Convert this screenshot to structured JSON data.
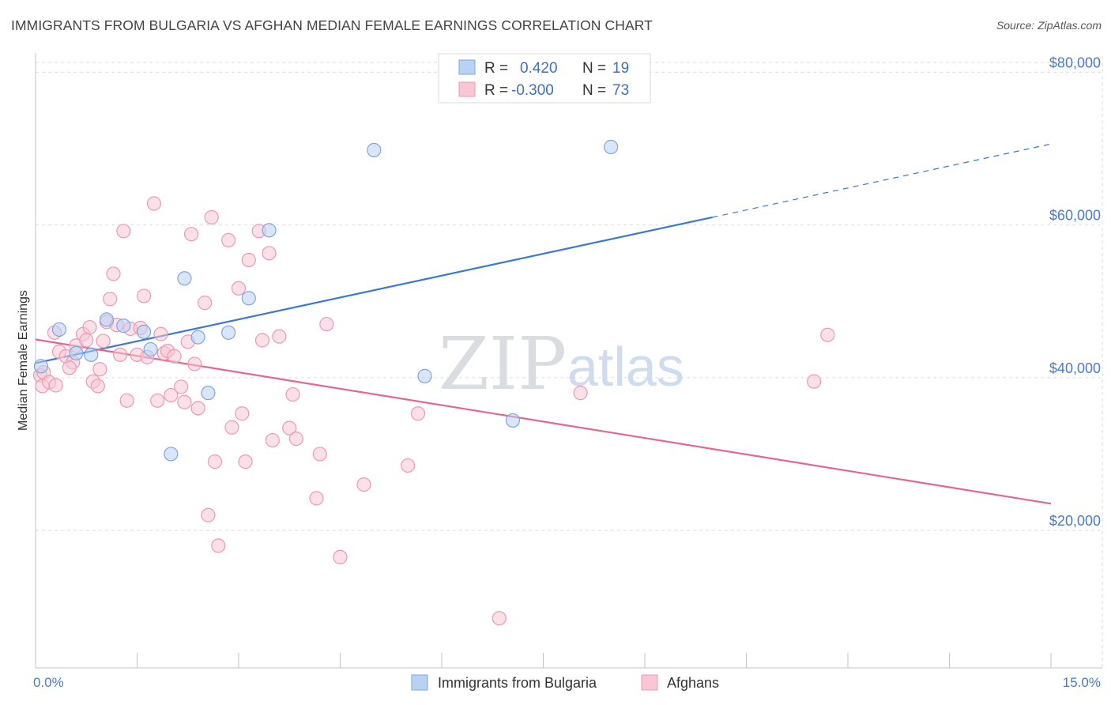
{
  "title": "IMMIGRANTS FROM BULGARIA VS AFGHAN MEDIAN FEMALE EARNINGS CORRELATION CHART",
  "source": "Source: ZipAtlas.com",
  "watermark": {
    "zip": "ZIP",
    "atlas": "atlas"
  },
  "colors": {
    "blue_fill": "#b9d1f5",
    "blue_stroke": "#7ea6e0",
    "blue_line": "#3a78d4",
    "pink_fill": "#f8c6d5",
    "pink_stroke": "#eb9ab3",
    "pink_line": "#e4678f",
    "grid": "#d9dde3",
    "tick_label": "#4a7bc4"
  },
  "legend_top": {
    "rows": [
      {
        "r_label": "R =",
        "r_value": "0.420",
        "n_label": "N =",
        "n_value": "19"
      },
      {
        "r_label": "R =",
        "r_value": "-0.300",
        "n_label": "N =",
        "n_value": "73"
      }
    ]
  },
  "legend_bottom": [
    "Immigrants from Bulgaria",
    "Afghans"
  ],
  "chart_data": {
    "type": "scatter",
    "title": "IMMIGRANTS FROM BULGARIA VS AFGHAN MEDIAN FEMALE EARNINGS CORRELATION CHART",
    "xlabel": "",
    "ylabel": "Median Female Earnings",
    "xlim": [
      0,
      15
    ],
    "ylim": [
      2000,
      82000
    ],
    "x_tick_labels": [
      "0.0%",
      "15.0%"
    ],
    "y_ticks": [
      20000,
      40000,
      60000,
      80000
    ],
    "y_tick_labels": [
      "$20,000",
      "$40,000",
      "$60,000",
      "$80,000"
    ],
    "grid": true,
    "legend_position": "top-center",
    "series": [
      {
        "name": "Immigrants from Bulgaria",
        "R": 0.42,
        "N": 19,
        "trend": {
          "x0": 0.0,
          "y0": 41900,
          "x1": 10.0,
          "y1": 61000,
          "dashed_to_x": 15.0,
          "dashed_to_y": 70600
        },
        "points": [
          [
            0.08,
            41500
          ],
          [
            0.35,
            46300
          ],
          [
            0.6,
            43200
          ],
          [
            0.82,
            43000
          ],
          [
            1.05,
            47600
          ],
          [
            1.3,
            46800
          ],
          [
            1.6,
            46000
          ],
          [
            1.7,
            43700
          ],
          [
            2.2,
            53000
          ],
          [
            2.4,
            45300
          ],
          [
            2.55,
            38000
          ],
          [
            2.85,
            45900
          ],
          [
            3.15,
            50400
          ],
          [
            3.45,
            59300
          ],
          [
            5.0,
            69800
          ],
          [
            5.75,
            40200
          ],
          [
            7.05,
            34400
          ],
          [
            8.5,
            70200
          ],
          [
            2.0,
            30000
          ]
        ]
      },
      {
        "name": "Afghans",
        "R": -0.3,
        "N": 73,
        "trend": {
          "x0": 0.0,
          "y0": 45000,
          "x1": 15.0,
          "y1": 23500
        },
        "points": [
          [
            0.07,
            40300
          ],
          [
            0.1,
            38900
          ],
          [
            0.12,
            40700
          ],
          [
            0.2,
            39400
          ],
          [
            0.28,
            45900
          ],
          [
            0.35,
            43400
          ],
          [
            0.45,
            42800
          ],
          [
            0.55,
            42000
          ],
          [
            0.6,
            44200
          ],
          [
            0.7,
            45700
          ],
          [
            0.75,
            44900
          ],
          [
            0.8,
            46600
          ],
          [
            0.85,
            39500
          ],
          [
            0.92,
            38900
          ],
          [
            0.95,
            41100
          ],
          [
            1.0,
            44800
          ],
          [
            1.05,
            47300
          ],
          [
            1.1,
            50300
          ],
          [
            1.15,
            53600
          ],
          [
            1.25,
            43000
          ],
          [
            1.3,
            59200
          ],
          [
            1.35,
            37000
          ],
          [
            1.4,
            46400
          ],
          [
            1.5,
            43000
          ],
          [
            1.55,
            46500
          ],
          [
            1.6,
            50700
          ],
          [
            1.65,
            42700
          ],
          [
            1.75,
            62800
          ],
          [
            1.8,
            37000
          ],
          [
            1.85,
            45700
          ],
          [
            1.9,
            43200
          ],
          [
            1.95,
            43500
          ],
          [
            2.0,
            37700
          ],
          [
            2.05,
            42800
          ],
          [
            2.15,
            38800
          ],
          [
            2.2,
            36800
          ],
          [
            2.25,
            44700
          ],
          [
            2.3,
            58800
          ],
          [
            2.35,
            41800
          ],
          [
            2.4,
            36000
          ],
          [
            2.5,
            49800
          ],
          [
            2.6,
            61000
          ],
          [
            2.65,
            29000
          ],
          [
            2.7,
            18000
          ],
          [
            2.85,
            58000
          ],
          [
            2.9,
            33500
          ],
          [
            3.0,
            51700
          ],
          [
            3.05,
            35300
          ],
          [
            3.1,
            29000
          ],
          [
            3.15,
            55400
          ],
          [
            3.3,
            59200
          ],
          [
            3.35,
            44900
          ],
          [
            3.45,
            56300
          ],
          [
            3.5,
            31800
          ],
          [
            3.6,
            45400
          ],
          [
            3.75,
            33400
          ],
          [
            3.8,
            37800
          ],
          [
            3.85,
            32000
          ],
          [
            4.15,
            24200
          ],
          [
            4.2,
            30000
          ],
          [
            4.3,
            47000
          ],
          [
            4.5,
            16500
          ],
          [
            4.85,
            26000
          ],
          [
            5.5,
            28500
          ],
          [
            5.65,
            35300
          ],
          [
            6.85,
            8500
          ],
          [
            8.05,
            38000
          ],
          [
            11.5,
            39500
          ],
          [
            11.7,
            45600
          ],
          [
            2.55,
            22000
          ],
          [
            1.2,
            46900
          ],
          [
            0.5,
            41300
          ],
          [
            0.3,
            39000
          ]
        ]
      }
    ]
  }
}
